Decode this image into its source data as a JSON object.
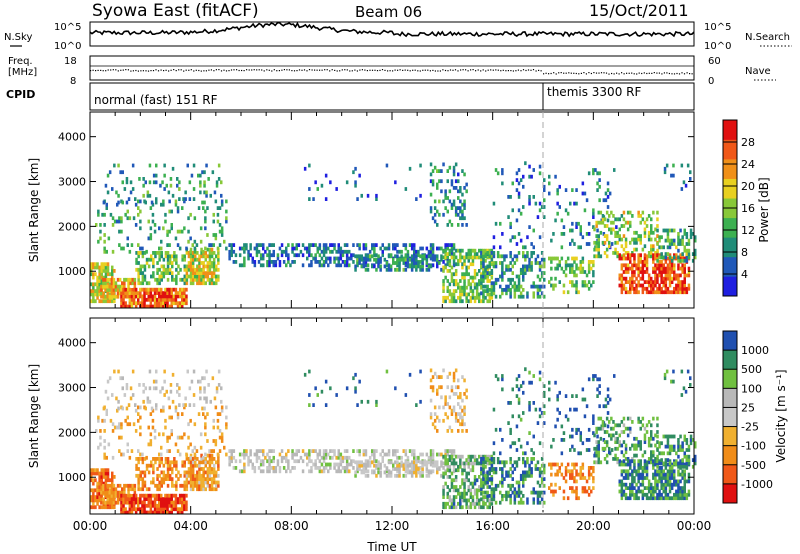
{
  "header": {
    "title": "Syowa East (fitACF)",
    "beam": "Beam 06",
    "date": "15/Oct/2011"
  },
  "noise_panel": {
    "left_label": "N.Sky",
    "right_label": "N.Search",
    "left_ticks": [
      "10^5",
      "10^0"
    ],
    "right_ticks": [
      "10^5",
      "10^0"
    ]
  },
  "freq_panel": {
    "left_label_line1": "Freq.",
    "left_label_line2": "[MHz]",
    "right_label": "Nave",
    "left_ticks": [
      "18",
      "8"
    ],
    "right_ticks": [
      "60",
      "0"
    ]
  },
  "cpid_panel": {
    "label": "CPID",
    "mode1": "normal (fast) 151 RF",
    "mode2": "themis 3300 RF",
    "mode2_start_hour": 18.0
  },
  "colors": {
    "power_scale": [
      "#1f1fe0",
      "#2058b8",
      "#208c78",
      "#3cb050",
      "#88c838",
      "#e8d020",
      "#f09018",
      "#f05818",
      "#e01010"
    ],
    "velocity_scale": [
      "#e01010",
      "#f05818",
      "#f08c18",
      "#f0b030",
      "#c8c8c8",
      "#b8b8b8",
      "#70c040",
      "#308c60",
      "#2050b0"
    ]
  },
  "chart_data": [
    {
      "type": "heatmap",
      "name": "power",
      "ylabel": "Slant Range [km]",
      "x_range": [
        0,
        24
      ],
      "ylim": [
        180,
        4550
      ],
      "y_ticks": [
        "1000",
        "2000",
        "3000",
        "4000"
      ],
      "colorbar_label": "Power [dB]",
      "colorbar_ticks": [
        "4",
        "8",
        "12",
        "16",
        "20",
        "24",
        "28"
      ],
      "colorbar_range": [
        0,
        32
      ]
    },
    {
      "type": "heatmap",
      "name": "velocity",
      "xlabel": "Time UT",
      "ylabel": "Slant Range [km]",
      "x_range": [
        0,
        24
      ],
      "ylim": [
        180,
        4550
      ],
      "x_ticks": [
        "00:00",
        "04:00",
        "08:00",
        "12:00",
        "16:00",
        "20:00",
        "00:00"
      ],
      "y_ticks": [
        "1000",
        "2000",
        "3000",
        "4000"
      ],
      "colorbar_label": "Velocity [m s⁻¹]",
      "colorbar_ticks": [
        "1000",
        "500",
        "100",
        "25",
        "-25",
        "-100",
        "-500",
        "-1000"
      ]
    }
  ]
}
